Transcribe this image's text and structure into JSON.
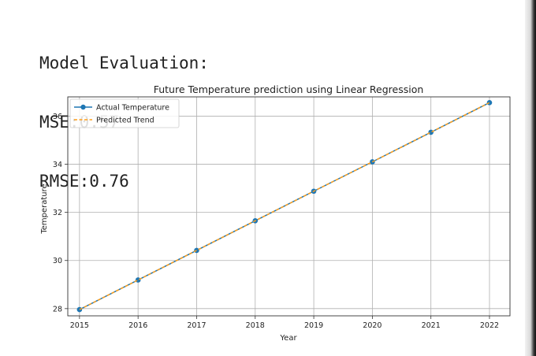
{
  "evaluation": {
    "heading": "Model Evaluation:",
    "mse": "MSE:0.57",
    "rmse": "RMSE:0.76"
  },
  "chart_data": {
    "type": "line",
    "title": "Future Temperature prediction using Linear Regression",
    "xlabel": "Year",
    "ylabel": "Temperature",
    "x": [
      2015,
      2016,
      2017,
      2018,
      2019,
      2020,
      2021,
      2022
    ],
    "x_ticks": [
      "2015",
      "2016",
      "2017",
      "2018",
      "2019",
      "2020",
      "2021",
      "2022"
    ],
    "y_ticks": [
      "28",
      "30",
      "32",
      "34",
      "36"
    ],
    "ylim": [
      27.7,
      36.8
    ],
    "xlim": [
      2014.8,
      2022.35
    ],
    "grid": true,
    "legend_position": "top-left",
    "series": [
      {
        "name": "Actual Temperature",
        "style": "solid-with-markers",
        "color": "#1f77b4",
        "values": [
          27.96,
          29.19,
          30.42,
          31.65,
          32.88,
          34.1,
          35.33,
          36.56
        ]
      },
      {
        "name": "Predicted Trend",
        "style": "dashed",
        "color": "#ff9f1c",
        "values": [
          27.96,
          29.19,
          30.42,
          31.65,
          32.88,
          34.1,
          35.33,
          36.56
        ]
      }
    ]
  }
}
